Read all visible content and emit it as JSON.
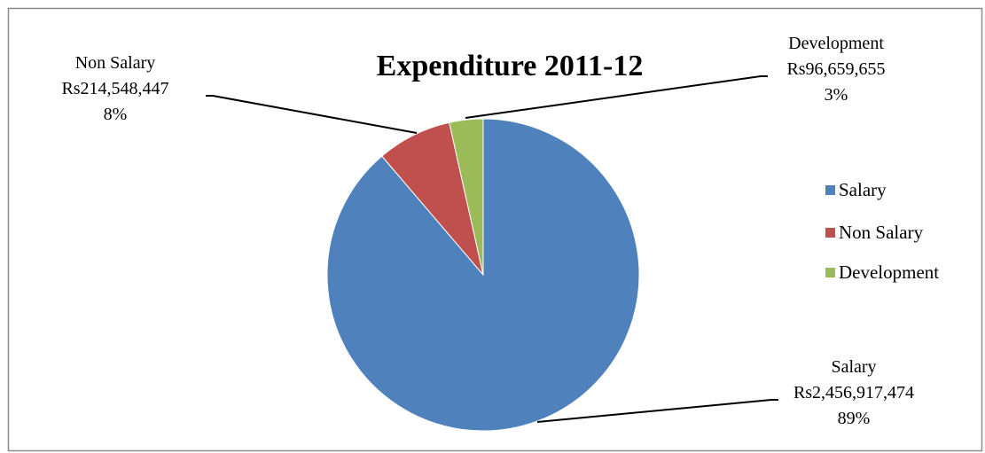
{
  "chart_data": {
    "type": "pie",
    "title": "Expenditure 2011-12",
    "legend_position": "right",
    "slices": [
      {
        "name": "Salary",
        "value": 2456917474,
        "value_label": "Rs2,456,917,474",
        "percent_label": "89%",
        "color": "#4F81BD"
      },
      {
        "name": "Non Salary",
        "value": 214548447,
        "value_label": "Rs214,548,447",
        "percent_label": "8%",
        "color": "#C0504D"
      },
      {
        "name": "Development",
        "value": 96659655,
        "value_label": "Rs96,659,655",
        "percent_label": "3%",
        "color": "#9BBB59"
      }
    ]
  }
}
